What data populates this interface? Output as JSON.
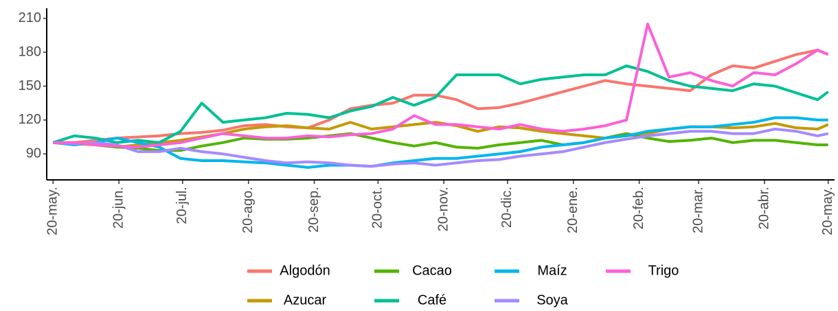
{
  "chart_data": {
    "type": "line",
    "x": [
      0,
      10,
      20,
      30,
      40,
      50,
      60,
      70,
      80,
      90,
      100,
      110,
      120,
      130,
      140,
      150,
      160,
      170,
      180,
      190,
      200,
      210,
      220,
      230,
      240,
      250,
      260,
      270,
      280,
      290,
      300,
      310,
      320,
      330,
      340,
      350,
      360,
      365
    ],
    "xlim": [
      -3,
      368
    ],
    "xticks": [
      {
        "value": 0,
        "label": "20-may."
      },
      {
        "value": 31,
        "label": "20-jun."
      },
      {
        "value": 61,
        "label": "20-jul."
      },
      {
        "value": 92,
        "label": "20-ago."
      },
      {
        "value": 123,
        "label": "20-sep."
      },
      {
        "value": 153,
        "label": "20-oct."
      },
      {
        "value": 184,
        "label": "20-nov."
      },
      {
        "value": 214,
        "label": "20-dic."
      },
      {
        "value": 245,
        "label": "20-ene."
      },
      {
        "value": 276,
        "label": "20-feb."
      },
      {
        "value": 304,
        "label": "20-mar."
      },
      {
        "value": 335,
        "label": "20-abr."
      },
      {
        "value": 365,
        "label": "20-may."
      }
    ],
    "ylim": [
      67,
      219
    ],
    "yticks": [
      90,
      120,
      150,
      180,
      210
    ],
    "grid": false,
    "legend": "bottom",
    "series": [
      {
        "name": "Algodón",
        "color": "#F8766D",
        "values": [
          100,
          100,
          102,
          104,
          105,
          106,
          108,
          109,
          111,
          115,
          116,
          114,
          113,
          120,
          130,
          133,
          135,
          142,
          142,
          138,
          130,
          131,
          135,
          140,
          145,
          150,
          155,
          152,
          150,
          148,
          146,
          160,
          168,
          166,
          172,
          178,
          182,
          178
        ]
      },
      {
        "name": "Azucar",
        "color": "#C49A00",
        "values": [
          100,
          99,
          98,
          96,
          98,
          100,
          102,
          105,
          108,
          112,
          114,
          115,
          113,
          112,
          118,
          112,
          114,
          116,
          118,
          115,
          110,
          114,
          113,
          110,
          108,
          106,
          104,
          106,
          108,
          112,
          114,
          114,
          113,
          114,
          117,
          113,
          112,
          116
        ]
      },
      {
        "name": "Cacao",
        "color": "#53B400",
        "values": [
          100,
          100,
          98,
          96,
          95,
          93,
          93,
          97,
          100,
          104,
          103,
          103,
          104,
          106,
          108,
          104,
          100,
          97,
          100,
          96,
          95,
          98,
          100,
          102,
          98,
          100,
          104,
          108,
          104,
          101,
          102,
          104,
          100,
          102,
          102,
          100,
          98,
          98
        ]
      },
      {
        "name": "Café",
        "color": "#00C094",
        "values": [
          100,
          106,
          104,
          100,
          102,
          100,
          110,
          135,
          118,
          120,
          122,
          126,
          125,
          122,
          128,
          132,
          140,
          133,
          140,
          160,
          160,
          160,
          152,
          156,
          158,
          160,
          160,
          168,
          163,
          155,
          150,
          148,
          146,
          152,
          150,
          144,
          138,
          145
        ]
      },
      {
        "name": "Maíz",
        "color": "#00B6EB",
        "values": [
          100,
          98,
          100,
          104,
          100,
          96,
          86,
          84,
          84,
          83,
          82,
          80,
          78,
          80,
          80,
          79,
          82,
          84,
          86,
          86,
          88,
          90,
          92,
          96,
          98,
          100,
          104,
          106,
          110,
          112,
          114,
          114,
          116,
          118,
          122,
          122,
          120,
          120
        ]
      },
      {
        "name": "Soya",
        "color": "#A58AFF",
        "values": [
          100,
          99,
          100,
          98,
          92,
          92,
          95,
          92,
          90,
          87,
          84,
          82,
          83,
          82,
          80,
          79,
          81,
          82,
          80,
          82,
          84,
          85,
          88,
          90,
          92,
          96,
          100,
          103,
          106,
          108,
          110,
          110,
          108,
          108,
          112,
          110,
          106,
          108
        ]
      },
      {
        "name": "Trigo",
        "color": "#FB61D7",
        "values": [
          100,
          100,
          98,
          97,
          96,
          98,
          100,
          104,
          108,
          106,
          104,
          104,
          106,
          105,
          107,
          108,
          112,
          124,
          116,
          116,
          114,
          112,
          116,
          112,
          110,
          112,
          115,
          120,
          205,
          158,
          162,
          155,
          150,
          162,
          160,
          170,
          182,
          178
        ]
      }
    ]
  }
}
